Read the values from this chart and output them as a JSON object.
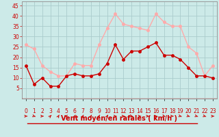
{
  "x": [
    0,
    1,
    2,
    3,
    4,
    5,
    6,
    7,
    8,
    9,
    10,
    11,
    12,
    13,
    14,
    15,
    16,
    17,
    18,
    19,
    20,
    21,
    22,
    23
  ],
  "wind_avg": [
    16,
    7,
    10,
    6,
    6,
    11,
    12,
    11,
    11,
    12,
    17,
    26,
    19,
    23,
    23,
    25,
    27,
    21,
    21,
    19,
    15,
    11,
    11,
    10
  ],
  "wind_gust": [
    26,
    24,
    16,
    13,
    11,
    11,
    17,
    16,
    16,
    26,
    34,
    41,
    36,
    35,
    34,
    33,
    41,
    37,
    35,
    35,
    25,
    22,
    11,
    16
  ],
  "avg_color": "#cc0000",
  "gust_color": "#ffaaaa",
  "bg_color": "#cceae8",
  "grid_color": "#aacccc",
  "xlabel": "Vent moyen/en rafales ( km/h )",
  "xlabel_color": "#cc0000",
  "ylim": [
    0,
    47
  ],
  "yticks": [
    5,
    10,
    15,
    20,
    25,
    30,
    35,
    40,
    45
  ],
  "xlim": [
    -0.5,
    23.5
  ],
  "line_width": 1.0,
  "marker_size": 2.5,
  "tick_fontsize": 5.5,
  "xlabel_fontsize": 7.0
}
